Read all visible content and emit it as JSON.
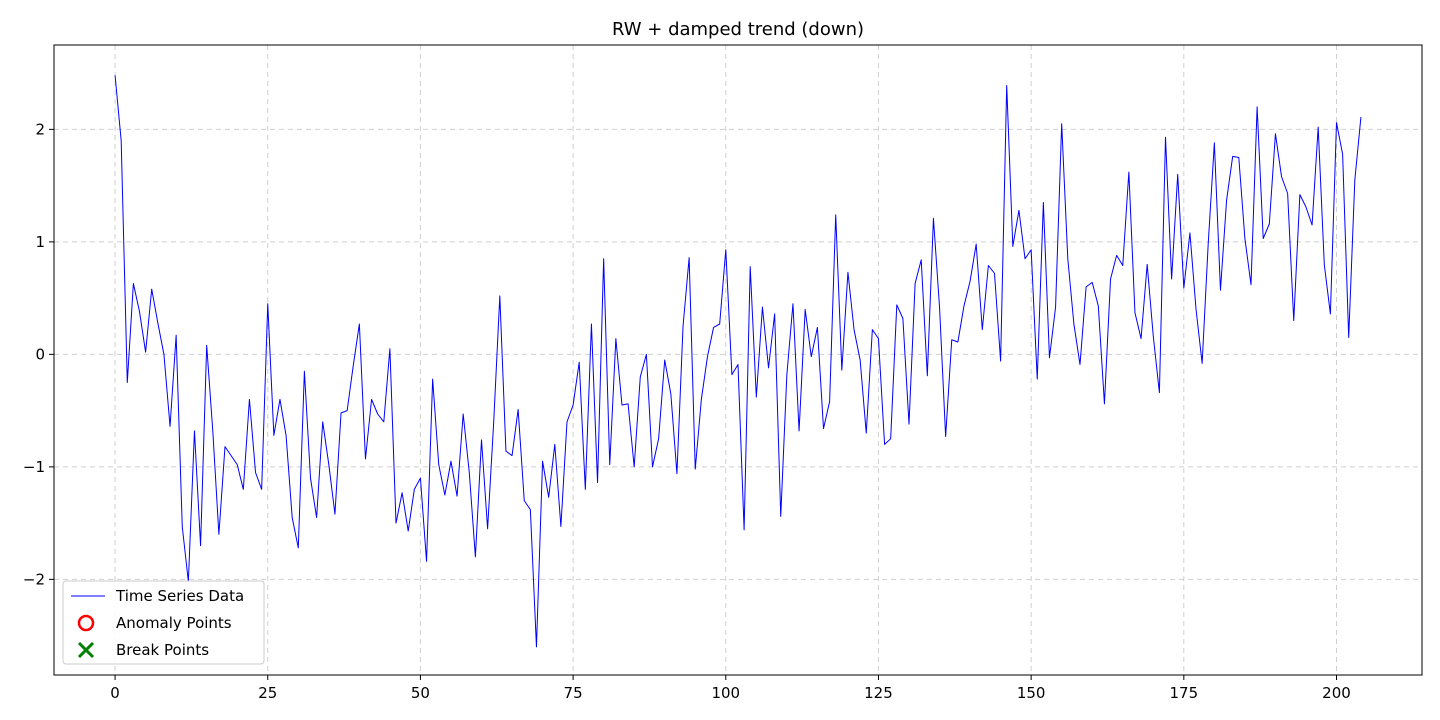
{
  "chart_data": {
    "type": "line",
    "title": "RW + damped trend (down)",
    "xlabel": "",
    "ylabel": "",
    "xlim": [
      -10,
      214
    ],
    "ylim": [
      -2.85,
      2.75
    ],
    "xticks": [
      0,
      25,
      50,
      75,
      100,
      125,
      150,
      175,
      200
    ],
    "yticks": [
      -2,
      -1,
      0,
      1,
      2
    ],
    "ytick_labels": [
      "−2",
      "−1",
      "0",
      "1",
      "2"
    ],
    "grid": true,
    "legend_position": "lower-left",
    "legend": [
      {
        "label": "Time Series Data",
        "marker": "line",
        "color": "#0000ff"
      },
      {
        "label": "Anomaly Points",
        "marker": "circle",
        "color": "#ff0000"
      },
      {
        "label": "Break Points",
        "marker": "x",
        "color": "#008000"
      }
    ],
    "series": [
      {
        "name": "Time Series Data",
        "color": "#0000ff",
        "x_start": 0,
        "x_step": 1,
        "values": [
          2.48,
          1.9,
          -0.25,
          0.63,
          0.38,
          0.02,
          0.58,
          0.28,
          0.0,
          -0.64,
          0.17,
          -1.53,
          -2.02,
          -0.68,
          -1.7,
          0.08,
          -0.68,
          -1.6,
          -0.82,
          -0.9,
          -0.98,
          -1.2,
          -0.4,
          -1.05,
          -1.2,
          0.45,
          -0.72,
          -0.4,
          -0.72,
          -1.45,
          -1.72,
          -0.15,
          -1.1,
          -1.45,
          -0.6,
          -0.98,
          -1.42,
          -0.52,
          -0.5,
          -0.1,
          0.27,
          -0.93,
          -0.4,
          -0.53,
          -0.6,
          0.05,
          -1.5,
          -1.23,
          -1.57,
          -1.2,
          -1.1,
          -1.84,
          -0.22,
          -0.98,
          -1.25,
          -0.95,
          -1.26,
          -0.53,
          -1.05,
          -1.8,
          -0.76,
          -1.55,
          -0.6,
          0.52,
          -0.86,
          -0.9,
          -0.49,
          -1.3,
          -1.38,
          -2.6,
          -0.95,
          -1.27,
          -0.8,
          -1.53,
          -0.6,
          -0.45,
          -0.07,
          -1.2,
          0.27,
          -1.14,
          0.85,
          -0.98,
          0.14,
          -0.45,
          -0.44,
          -1.0,
          -0.2,
          0.0,
          -1.0,
          -0.75,
          -0.05,
          -0.35,
          -1.06,
          0.25,
          0.86,
          -1.02,
          -0.4,
          -0.02,
          0.24,
          0.27,
          0.93,
          -0.18,
          -0.09,
          -1.56,
          0.78,
          -0.38,
          0.42,
          -0.12,
          0.36,
          -1.44,
          -0.18,
          0.45,
          -0.68,
          0.4,
          -0.02,
          0.24,
          -0.66,
          -0.42,
          1.24,
          -0.14,
          0.73,
          0.22,
          -0.05,
          -0.7,
          0.22,
          0.14,
          -0.8,
          -0.75,
          0.44,
          0.32,
          -0.62,
          0.63,
          0.84,
          -0.19,
          1.21,
          0.42,
          -0.73,
          0.13,
          0.11,
          0.43,
          0.65,
          0.98,
          0.22,
          0.79,
          0.72,
          -0.06,
          2.39,
          0.96,
          1.28,
          0.85,
          0.93,
          -0.22,
          1.35,
          -0.03,
          0.42,
          2.05,
          0.85,
          0.27,
          -0.09,
          0.6,
          0.64,
          0.43,
          -0.44,
          0.67,
          0.88,
          0.79,
          1.62,
          0.37,
          0.14,
          0.8,
          0.16,
          -0.34,
          1.93,
          0.67,
          1.6,
          0.59,
          1.08,
          0.4,
          -0.08,
          0.99,
          1.88,
          0.57,
          1.37,
          1.76,
          1.75,
          1.03,
          0.62,
          2.2,
          1.03,
          1.16,
          1.96,
          1.58,
          1.43,
          0.3,
          1.42,
          1.31,
          1.15,
          2.02,
          0.8,
          0.36,
          2.06,
          1.78,
          0.15,
          1.55,
          2.11
        ]
      }
    ]
  }
}
